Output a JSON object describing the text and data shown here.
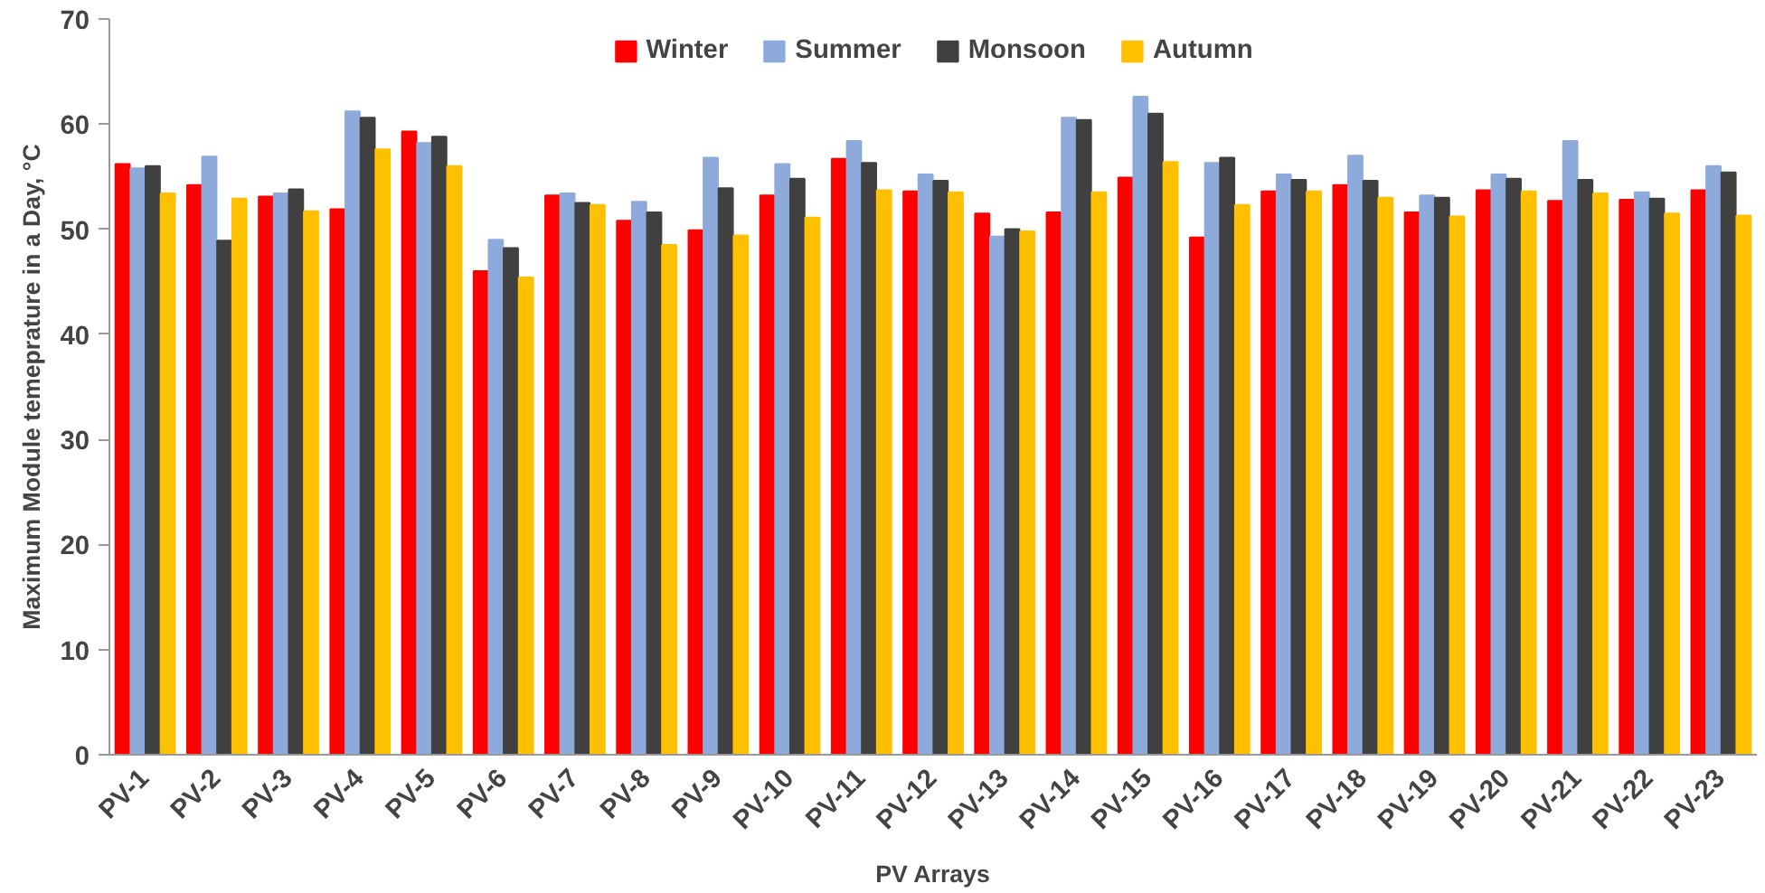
{
  "chart_data": {
    "type": "bar",
    "xlabel": "PV Arrays",
    "ylabel": "Maximum Module temeprature in a Day, °C",
    "categories": [
      "PV-1",
      "PV-2",
      "PV-3",
      "PV-4",
      "PV-5",
      "PV-6",
      "PV-7",
      "PV-8",
      "PV-9",
      "PV-10",
      "PV-11",
      "PV-12",
      "PV-13",
      "PV-14",
      "PV-15",
      "PV-16",
      "PV-17",
      "PV-18",
      "PV-19",
      "PV-20",
      "PV-21",
      "PV-22",
      "PV-23"
    ],
    "series": [
      {
        "name": "Winter",
        "color": "#ff0000",
        "values": [
          56.2,
          54.2,
          53.1,
          51.9,
          59.3,
          46.0,
          53.2,
          50.8,
          49.9,
          53.2,
          56.7,
          53.6,
          51.5,
          51.6,
          54.9,
          49.2,
          53.6,
          54.2,
          51.6,
          53.7,
          52.7,
          52.8,
          53.7
        ]
      },
      {
        "name": "Summer",
        "color": "#8eaadb",
        "values": [
          55.8,
          56.9,
          53.4,
          61.2,
          58.2,
          49.0,
          53.4,
          52.6,
          56.8,
          56.2,
          58.4,
          55.2,
          49.3,
          60.6,
          62.6,
          56.3,
          55.2,
          57.0,
          53.2,
          55.2,
          58.4,
          53.5,
          56.0
        ]
      },
      {
        "name": "Monsoon",
        "color": "#404040",
        "values": [
          56.0,
          48.9,
          53.8,
          60.6,
          58.8,
          48.2,
          52.5,
          51.6,
          53.9,
          54.8,
          56.3,
          54.6,
          50.0,
          60.4,
          61.0,
          56.8,
          54.7,
          54.6,
          53.0,
          54.8,
          54.7,
          52.9,
          55.4
        ]
      },
      {
        "name": "Autumn",
        "color": "#ffc000",
        "values": [
          53.4,
          52.9,
          51.7,
          57.6,
          56.0,
          45.4,
          52.3,
          48.5,
          49.4,
          51.1,
          53.7,
          53.5,
          49.8,
          53.5,
          56.4,
          52.3,
          53.6,
          53.0,
          51.2,
          53.6,
          53.4,
          51.5,
          51.3
        ]
      }
    ],
    "ylim": [
      0,
      70
    ],
    "yticks": [
      0,
      10,
      20,
      30,
      40,
      50,
      60,
      70
    ],
    "grid": false,
    "legend": "top"
  }
}
